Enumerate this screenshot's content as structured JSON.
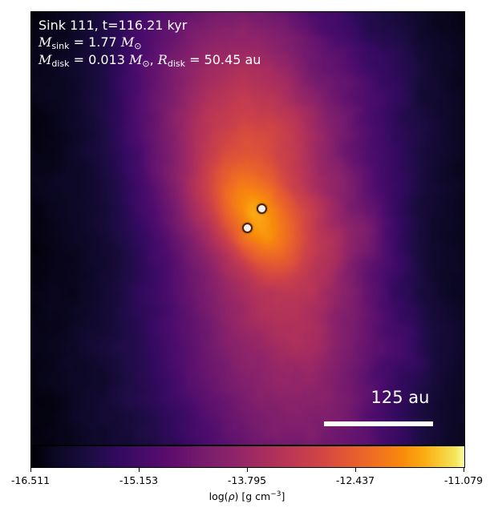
{
  "annotation": {
    "sink_line": "Sink 111, t=116.21 kyr",
    "msink_symbol": "M",
    "msink_sub": "sink",
    "msink_value": " = 1.77",
    "msink_unit": "M",
    "msink_unit_sub": "⊙",
    "mdisk_symbol": "M",
    "mdisk_sub": "disk",
    "mdisk_value": " = 0.013",
    "mdisk_unit": "M",
    "mdisk_unit_sub": "⊙",
    "rdisk_sep": ", ",
    "rdisk_symbol": "R",
    "rdisk_sub": "disk",
    "rdisk_value": " = 50.45 au"
  },
  "scale_bar": {
    "label": "125 au",
    "color": "#ffffff"
  },
  "sinks": {
    "count": 2,
    "fill": "#f4f0ea",
    "edge": "#4a2410"
  },
  "colorbar": {
    "colormap": "inferno",
    "ticks": [
      "-16.511",
      "-15.153",
      "-13.795",
      "-12.437",
      "-11.079"
    ],
    "label_prefix": "log(",
    "label_rho": "ρ",
    "label_mid": ") [g cm",
    "label_exp": "−3",
    "label_suffix": "]"
  }
}
